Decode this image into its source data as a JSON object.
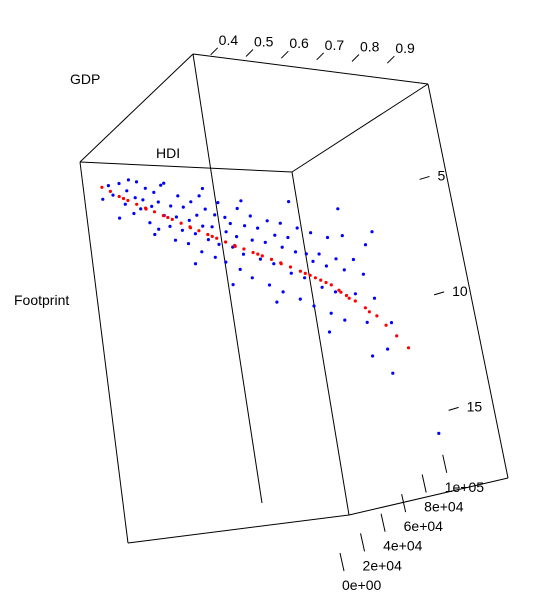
{
  "chart_data": {
    "type": "scatter3d",
    "axis_labels": {
      "gdp": "GDP",
      "hdi": "HDI",
      "footprint": "Footprint"
    },
    "hdi_ticks": [
      "0.4",
      "0.5",
      "0.6",
      "0.7",
      "0.8",
      "0.9"
    ],
    "footprint_ticks": [
      "5",
      "10",
      "15"
    ],
    "gdp_ticks": [
      "0e+00",
      "2e+04",
      "4e+04",
      "6e+04",
      "8e+04",
      "1e+05"
    ],
    "ranges": {
      "hdi": [
        0.35,
        0.95
      ],
      "footprint": [
        0,
        16.5
      ],
      "gdp": [
        0,
        110000
      ]
    },
    "colors": {
      "observed": "#0000ff",
      "fitted": "#ff0000"
    },
    "series": [
      {
        "role": "observed",
        "color": "#0000ff",
        "points": [
          [
            0.4,
            1.6,
            500
          ],
          [
            0.42,
            1.0,
            700
          ],
          [
            0.43,
            1.4,
            600
          ],
          [
            0.45,
            0.9,
            1000
          ],
          [
            0.46,
            1.8,
            1200
          ],
          [
            0.47,
            1.2,
            900
          ],
          [
            0.48,
            2.2,
            1500
          ],
          [
            0.49,
            1.5,
            1300
          ],
          [
            0.5,
            0.8,
            1100
          ],
          [
            0.5,
            2.0,
            1800
          ],
          [
            0.51,
            1.6,
            1700
          ],
          [
            0.52,
            1.1,
            2000
          ],
          [
            0.52,
            2.6,
            2200
          ],
          [
            0.53,
            1.9,
            2500
          ],
          [
            0.54,
            1.3,
            2800
          ],
          [
            0.54,
            2.9,
            3000
          ],
          [
            0.55,
            1.7,
            2600
          ],
          [
            0.56,
            2.3,
            3200
          ],
          [
            0.56,
            1.0,
            3500
          ],
          [
            0.57,
            2.8,
            4000
          ],
          [
            0.58,
            1.9,
            3800
          ],
          [
            0.58,
            3.4,
            4200
          ],
          [
            0.59,
            2.4,
            4500
          ],
          [
            0.6,
            1.5,
            5000
          ],
          [
            0.6,
            3.0,
            5200
          ],
          [
            0.61,
            2.0,
            5500
          ],
          [
            0.61,
            3.6,
            6000
          ],
          [
            0.62,
            2.6,
            6200
          ],
          [
            0.63,
            1.8,
            6500
          ],
          [
            0.63,
            3.2,
            7000
          ],
          [
            0.64,
            2.4,
            7200
          ],
          [
            0.64,
            4.0,
            7500
          ],
          [
            0.65,
            2.9,
            8000
          ],
          [
            0.65,
            1.6,
            8200
          ],
          [
            0.66,
            3.5,
            8500
          ],
          [
            0.66,
            2.2,
            9000
          ],
          [
            0.67,
            4.3,
            9500
          ],
          [
            0.67,
            3.0,
            10000
          ],
          [
            0.68,
            2.5,
            10500
          ],
          [
            0.68,
            3.8,
            11000
          ],
          [
            0.69,
            2.0,
            11500
          ],
          [
            0.69,
            4.6,
            12000
          ],
          [
            0.7,
            3.3,
            12500
          ],
          [
            0.7,
            2.7,
            13000
          ],
          [
            0.71,
            4.0,
            13500
          ],
          [
            0.71,
            3.0,
            14000
          ],
          [
            0.72,
            5.0,
            14500
          ],
          [
            0.72,
            3.6,
            15000
          ],
          [
            0.73,
            2.4,
            15500
          ],
          [
            0.73,
            4.4,
            16000
          ],
          [
            0.74,
            3.2,
            17000
          ],
          [
            0.74,
            5.5,
            18000
          ],
          [
            0.75,
            3.9,
            19000
          ],
          [
            0.75,
            2.9,
            20000
          ],
          [
            0.76,
            4.8,
            21000
          ],
          [
            0.76,
            3.5,
            22000
          ],
          [
            0.77,
            6.0,
            23000
          ],
          [
            0.77,
            4.2,
            24000
          ],
          [
            0.78,
            3.3,
            25000
          ],
          [
            0.78,
            5.2,
            26000
          ],
          [
            0.79,
            4.0,
            27000
          ],
          [
            0.79,
            6.5,
            28000
          ],
          [
            0.8,
            4.6,
            29000
          ],
          [
            0.8,
            3.6,
            30000
          ],
          [
            0.81,
            5.8,
            31000
          ],
          [
            0.81,
            4.3,
            32000
          ],
          [
            0.82,
            7.0,
            33000
          ],
          [
            0.82,
            5.0,
            34000
          ],
          [
            0.83,
            4.0,
            35000
          ],
          [
            0.83,
            6.2,
            36000
          ],
          [
            0.84,
            5.2,
            37000
          ],
          [
            0.84,
            7.5,
            38000
          ],
          [
            0.85,
            5.6,
            39000
          ],
          [
            0.85,
            4.4,
            40000
          ],
          [
            0.86,
            6.8,
            41000
          ],
          [
            0.86,
            5.4,
            42000
          ],
          [
            0.87,
            8.0,
            43000
          ],
          [
            0.87,
            6.0,
            44000
          ],
          [
            0.88,
            4.8,
            45000
          ],
          [
            0.88,
            7.2,
            46000
          ],
          [
            0.89,
            5.8,
            47000
          ],
          [
            0.89,
            8.5,
            48000
          ],
          [
            0.9,
            6.4,
            50000
          ],
          [
            0.9,
            5.0,
            52000
          ],
          [
            0.91,
            7.6,
            54000
          ],
          [
            0.91,
            6.2,
            56000
          ],
          [
            0.92,
            9.0,
            58000
          ],
          [
            0.92,
            7.0,
            60000
          ],
          [
            0.93,
            5.8,
            62000
          ],
          [
            0.93,
            8.2,
            64000
          ],
          [
            0.48,
            0.7,
            400
          ],
          [
            0.44,
            2.4,
            800
          ],
          [
            0.53,
            3.1,
            2100
          ],
          [
            0.57,
            0.9,
            3300
          ],
          [
            0.62,
            4.5,
            6800
          ],
          [
            0.66,
            1.3,
            8800
          ],
          [
            0.7,
            5.6,
            12800
          ],
          [
            0.74,
            2.1,
            16500
          ],
          [
            0.78,
            6.8,
            24500
          ],
          [
            0.82,
            2.8,
            33500
          ],
          [
            0.86,
            8.8,
            42500
          ],
          [
            0.9,
            3.8,
            51000
          ],
          [
            0.92,
            10.5,
            59000
          ],
          [
            0.94,
            5.4,
            66000
          ],
          [
            0.95,
            9.5,
            70000
          ],
          [
            0.93,
            15.8,
            105000
          ],
          [
            0.89,
            11.2,
            82000
          ],
          [
            0.87,
            12.6,
            90000
          ]
        ]
      },
      {
        "role": "fitted",
        "color": "#ff0000",
        "points": [
          [
            0.4,
            1.1,
            1000
          ],
          [
            0.42,
            1.3,
            1800
          ],
          [
            0.44,
            1.55,
            2800
          ],
          [
            0.46,
            1.75,
            3800
          ],
          [
            0.48,
            1.95,
            5000
          ],
          [
            0.5,
            2.15,
            6200
          ],
          [
            0.52,
            2.35,
            7400
          ],
          [
            0.54,
            2.55,
            8600
          ],
          [
            0.56,
            2.75,
            9800
          ],
          [
            0.58,
            2.95,
            11000
          ],
          [
            0.6,
            3.15,
            12200
          ],
          [
            0.62,
            3.35,
            13400
          ],
          [
            0.64,
            3.55,
            14600
          ],
          [
            0.66,
            3.75,
            15800
          ],
          [
            0.68,
            3.95,
            17000
          ],
          [
            0.7,
            4.15,
            18500
          ],
          [
            0.72,
            4.35,
            20000
          ],
          [
            0.74,
            4.55,
            21500
          ],
          [
            0.76,
            4.75,
            23000
          ],
          [
            0.78,
            4.95,
            24500
          ],
          [
            0.8,
            5.15,
            26000
          ],
          [
            0.82,
            5.4,
            28000
          ],
          [
            0.84,
            5.65,
            30000
          ],
          [
            0.86,
            5.9,
            32000
          ],
          [
            0.88,
            6.2,
            34500
          ],
          [
            0.9,
            6.5,
            37000
          ],
          [
            0.91,
            6.85,
            40000
          ],
          [
            0.92,
            7.2,
            43000
          ],
          [
            0.93,
            7.6,
            47000
          ],
          [
            0.94,
            8.1,
            52000
          ],
          [
            0.95,
            8.7,
            58000
          ],
          [
            0.95,
            9.4,
            65000
          ],
          [
            0.95,
            10.2,
            73000
          ],
          [
            0.95,
            11.1,
            82000
          ],
          [
            0.45,
            1.65,
            3300
          ],
          [
            0.55,
            2.65,
            9200
          ],
          [
            0.65,
            3.65,
            15200
          ],
          [
            0.75,
            4.65,
            22300
          ],
          [
            0.85,
            5.78,
            31000
          ],
          [
            0.89,
            6.35,
            35800
          ],
          [
            0.92,
            7.4,
            45000
          ],
          [
            0.94,
            8.4,
            55000
          ],
          [
            0.5,
            2.2,
            6400
          ],
          [
            0.6,
            3.2,
            12500
          ],
          [
            0.7,
            4.2,
            18800
          ],
          [
            0.8,
            5.2,
            26400
          ],
          [
            0.87,
            6.05,
            33200
          ],
          [
            0.91,
            7.0,
            41500
          ]
        ]
      }
    ]
  }
}
